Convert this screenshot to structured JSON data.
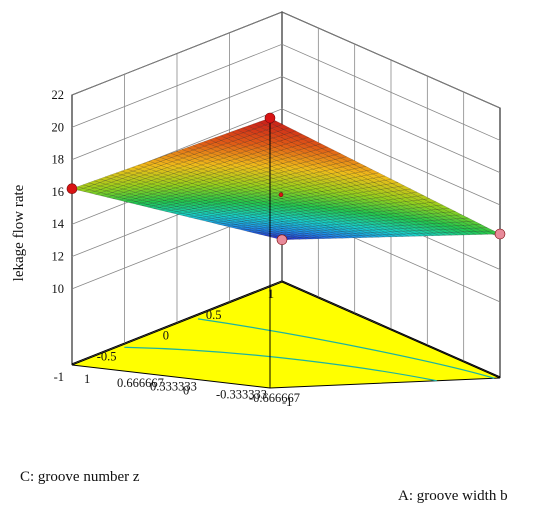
{
  "chart_data": {
    "type": "surface3d",
    "title": "",
    "zlabel": "lekage flow rate",
    "xlabel": "A: groove width b",
    "ylabel": "C: groove number z",
    "z_ticks": [
      "10",
      "12",
      "14",
      "16",
      "18",
      "20",
      "22"
    ],
    "x_ticks": [
      "-1",
      "-0.666667",
      "-0.333333",
      "0",
      "0.333333",
      "0.666667",
      "1"
    ],
    "y_ticks": [
      "-1",
      "-0.5",
      "0",
      "0.5",
      "1"
    ],
    "x_range": [
      -1,
      1
    ],
    "y_range": [
      -1,
      1
    ],
    "z_range": [
      9,
      22
    ],
    "surface_corners": [
      {
        "x": -1,
        "y": -1,
        "z": 7.9
      },
      {
        "x": 1,
        "y": -1,
        "z": 14.2
      },
      {
        "x": 1,
        "y": 1,
        "z": 22.0
      },
      {
        "x": -1,
        "y": 1,
        "z": 16.2
      }
    ],
    "design_points": [
      {
        "x": -1,
        "y": -1,
        "z": 7.9,
        "color": "#e88a9a"
      },
      {
        "x": 1,
        "y": -1,
        "z": 14.2,
        "color": "#e88a9a"
      },
      {
        "x": 1,
        "y": 1,
        "z": 22.0,
        "color": "#d81414"
      },
      {
        "x": -1,
        "y": 1,
        "z": 16.2,
        "color": "#d81414"
      },
      {
        "x": 0,
        "y": 0,
        "z": 15.1,
        "color": "#d81414"
      }
    ],
    "floor_color": "#ffff00",
    "contour_color": "#1db3a0",
    "colormap": [
      "#2a1fd4",
      "#1f8df0",
      "#19cfc7",
      "#23c64d",
      "#97cf1c",
      "#f0bd1a",
      "#e05a16",
      "#c81a1a"
    ],
    "grid": true
  }
}
